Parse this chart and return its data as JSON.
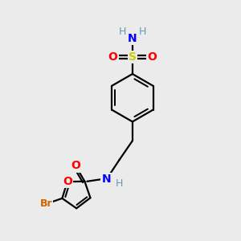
{
  "bg_color": "#ebebeb",
  "atom_colors": {
    "C": "#000000",
    "H": "#6699aa",
    "N": "#0000ff",
    "O": "#ff0000",
    "S": "#cccc00",
    "Br": "#cc6600"
  },
  "bond_color": "#000000",
  "bond_width": 1.6
}
